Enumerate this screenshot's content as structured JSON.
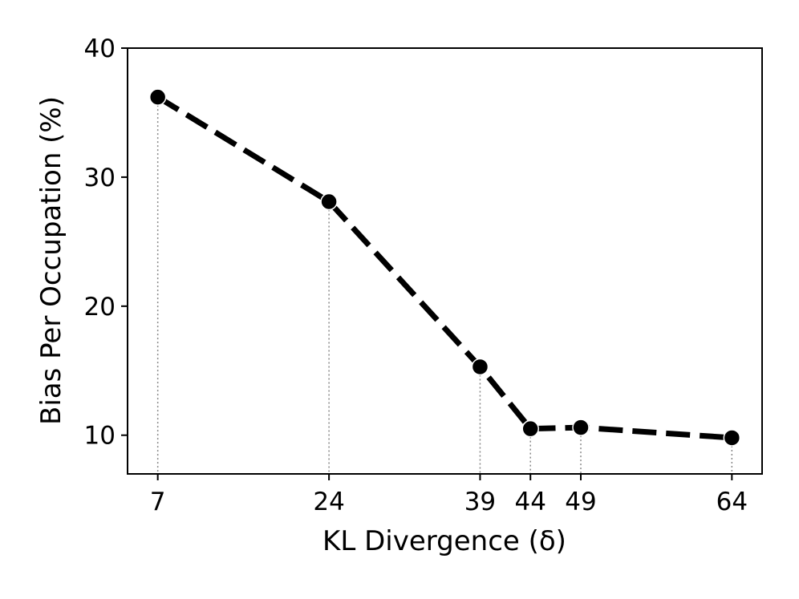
{
  "chart_data": {
    "type": "line",
    "title": "",
    "xlabel": "KL Divergence (δ)",
    "ylabel": "Bias Per Occupation (%)",
    "x": [
      7,
      24,
      39,
      44,
      49,
      64
    ],
    "series": [
      {
        "values": [
          36.2,
          28.1,
          15.3,
          10.5,
          10.6,
          9.8
        ],
        "color": "#000000",
        "line_style": "dashed",
        "marker": "circle"
      }
    ],
    "xlim": [
      4,
      67
    ],
    "ylim": [
      7,
      40
    ],
    "xticks": [
      7,
      24,
      39,
      44,
      49,
      64
    ],
    "xtick_labels": [
      "7",
      "24",
      "39",
      "44",
      "49",
      "64"
    ],
    "yticks": [
      10,
      20,
      30,
      40
    ],
    "ytick_labels": [
      "10",
      "20",
      "30",
      "40"
    ],
    "drop_lines": {
      "style": "dotted",
      "color": "#888888"
    },
    "grid": false,
    "legend": "none"
  }
}
